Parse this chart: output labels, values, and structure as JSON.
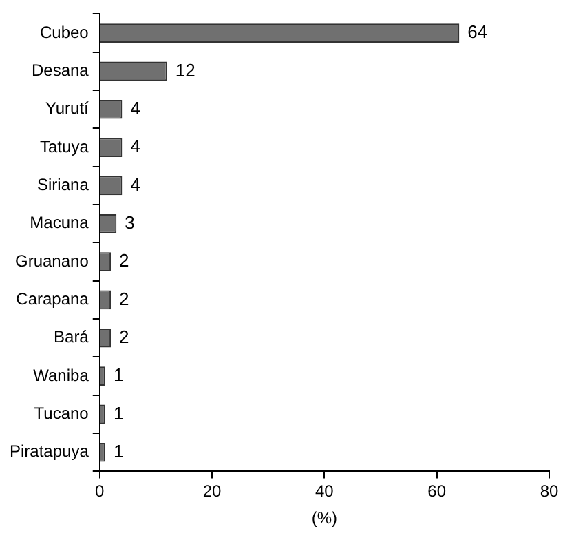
{
  "chart_data": {
    "type": "bar",
    "orientation": "horizontal",
    "xlabel": "(%)",
    "categories": [
      "Cubeo",
      "Desana",
      "Yurutí",
      "Tatuya",
      "Siriana",
      "Macuna",
      "Gruanano",
      "Carapana",
      "Bará",
      "Waniba",
      "Tucano",
      "Piratapuya"
    ],
    "values": [
      64,
      12,
      4,
      4,
      4,
      3,
      2,
      2,
      2,
      1,
      1,
      1
    ],
    "color": "#707070",
    "xlim": [
      0,
      80
    ],
    "xticks": [
      0,
      20,
      40,
      60,
      80
    ],
    "grid": false,
    "legend": false,
    "data_labels": true
  }
}
